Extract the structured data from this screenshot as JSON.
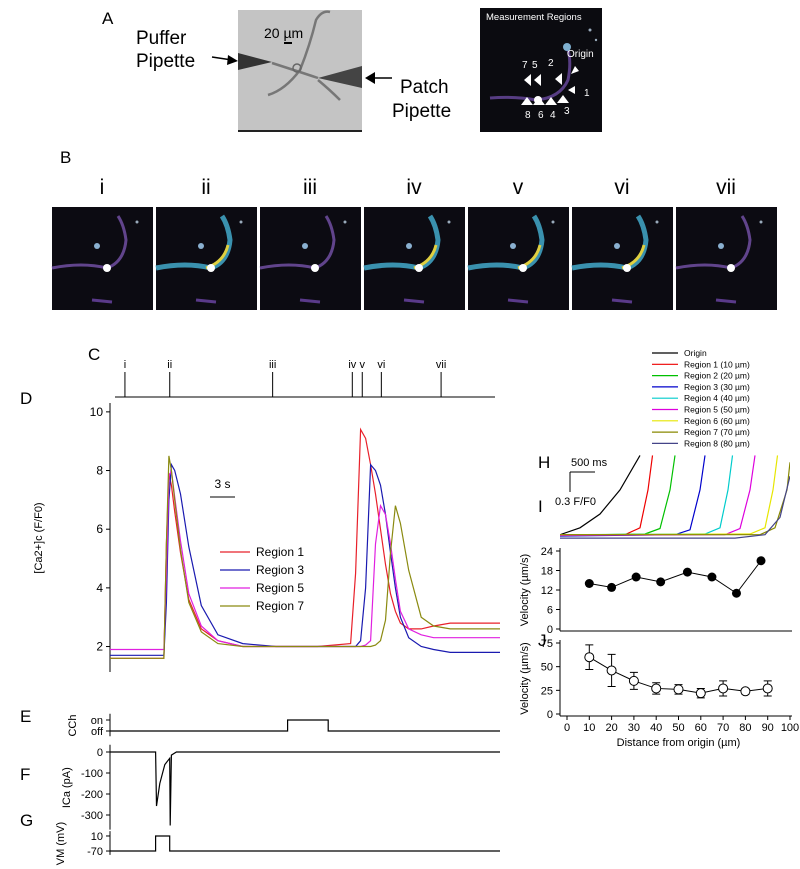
{
  "panel_a": {
    "label": "A",
    "puffer": [
      "Puffer",
      "Pipette"
    ],
    "patch": [
      "Patch",
      "Pipette"
    ],
    "scale": "20 µm",
    "inset_title": "Measurement Regions",
    "origin": "Origin",
    "region_numbers": [
      "7",
      "5",
      "2",
      "1",
      "8",
      "6",
      "4",
      "3"
    ]
  },
  "panel_b": {
    "label": "B",
    "frames": [
      "i",
      "ii",
      "iii",
      "iv",
      "v",
      "vi",
      "vii"
    ]
  },
  "chart_data": [
    {
      "type": "timeline",
      "panel": "C",
      "x": [
        1.8,
        7.2,
        19.6,
        29.2,
        30.4,
        32.7,
        39.9
      ],
      "labels": [
        "i",
        "ii",
        "iii",
        "iv",
        "v",
        "vi",
        "vii"
      ],
      "xlim": [
        0,
        47
      ]
    },
    {
      "type": "line",
      "panel": "D",
      "ylabel": "[Ca2+]c (F/F0)",
      "annotation": "3 s",
      "legend": "center-left",
      "x": [
        0,
        6.5,
        6.8,
        7.1,
        7.4,
        7.8,
        8.5,
        9.5,
        11,
        13,
        16,
        20,
        25,
        29,
        29.6,
        30.2,
        30.8,
        31.4,
        32,
        32.6,
        33.2,
        33.8,
        34.4,
        35,
        36,
        37.5,
        39,
        41,
        44,
        47
      ],
      "xlim": [
        0,
        47
      ],
      "ylim": [
        1.2,
        10.2
      ],
      "yticks": [
        2,
        4,
        6,
        8,
        10
      ],
      "series": [
        {
          "name": "Region 1",
          "color": "#e8202a",
          "values": [
            1.6,
            1.6,
            5.5,
            7.9,
            7.5,
            6.6,
            5.2,
            3.6,
            2.6,
            2.2,
            2.0,
            2.0,
            2.0,
            2.1,
            4.5,
            9.4,
            9.1,
            8.2,
            7.2,
            6.0,
            4.8,
            3.8,
            3.2,
            2.8,
            2.6,
            2.6,
            2.7,
            2.8,
            2.8,
            2.8
          ]
        },
        {
          "name": "Region 3",
          "color": "#1a1ab0",
          "values": [
            1.7,
            1.7,
            3.5,
            7.0,
            8.2,
            8.0,
            7.2,
            5.4,
            3.4,
            2.4,
            2.1,
            2.0,
            2.0,
            2.0,
            2.0,
            2.2,
            4.0,
            8.2,
            8.0,
            7.5,
            6.5,
            5.2,
            4.0,
            3.0,
            2.3,
            2.0,
            1.9,
            1.8,
            1.8,
            1.8
          ]
        },
        {
          "name": "Region 5",
          "color": "#e020e0",
          "values": [
            1.9,
            1.9,
            4.5,
            7.8,
            8.0,
            7.1,
            5.6,
            3.8,
            2.7,
            2.2,
            2.0,
            2.0,
            2.0,
            2.0,
            2.0,
            2.0,
            2.05,
            2.2,
            5.5,
            6.8,
            6.5,
            5.5,
            4.3,
            3.2,
            2.6,
            2.4,
            2.3,
            2.3,
            2.3,
            2.3
          ]
        },
        {
          "name": "Region 7",
          "color": "#8a8a10",
          "values": [
            1.6,
            1.6,
            5.5,
            8.5,
            8.0,
            7.0,
            5.3,
            3.5,
            2.5,
            2.1,
            2.0,
            2.0,
            2.0,
            2.0,
            2.0,
            2.0,
            2.0,
            2.0,
            2.05,
            2.2,
            2.9,
            5.2,
            6.8,
            6.2,
            4.6,
            3.0,
            2.7,
            2.6,
            2.6,
            2.6
          ]
        }
      ]
    },
    {
      "type": "line",
      "panel": "E",
      "ylabel": "CCh",
      "x": [
        0,
        21.4,
        21.4,
        26.3,
        26.3,
        47
      ],
      "xlim": [
        0,
        47
      ],
      "ylim": [
        -0.3,
        1.3
      ],
      "yticks": [
        {
          "value": 1,
          "label": "on"
        },
        {
          "value": 0,
          "label": "off"
        }
      ],
      "series": [
        {
          "color": "#000000",
          "values": [
            0,
            0,
            1,
            1,
            0,
            0
          ]
        }
      ]
    },
    {
      "type": "line",
      "panel": "F",
      "ylabel": "ICa (pA)",
      "x": [
        0,
        5.5,
        5.6,
        6,
        6.6,
        7.2,
        7.25,
        7.4,
        8,
        47
      ],
      "xlim": [
        0,
        47
      ],
      "ylim": [
        -360,
        20
      ],
      "yticks": [
        0,
        -100,
        -200,
        -300
      ],
      "series": [
        {
          "color": "#000000",
          "values": [
            0,
            0,
            -257,
            -150,
            -60,
            -30,
            -350,
            -15,
            0,
            0
          ]
        }
      ]
    },
    {
      "type": "line",
      "panel": "G",
      "ylabel": "VM (mV)",
      "x": [
        0,
        5.5,
        5.5,
        7.2,
        7.2,
        47
      ],
      "xlim": [
        0,
        47
      ],
      "ylim": [
        -80,
        20
      ],
      "yticks": [
        10,
        -70
      ],
      "series": [
        {
          "color": "#000000",
          "values": [
            -70,
            -70,
            10,
            10,
            -70,
            -70
          ]
        }
      ]
    },
    {
      "type": "line",
      "panel": "H",
      "annotations": [
        "500 ms",
        "0.3 F/F0"
      ],
      "legend": "top-right",
      "xlim": [
        0,
        4600
      ],
      "ylim": [
        -0.1,
        1.25
      ],
      "series": [
        {
          "name": "Origin",
          "color": "#000000",
          "x": [
            0,
            400,
            800,
            1200,
            1600
          ],
          "values": [
            0.05,
            0.15,
            0.35,
            0.7,
            1.2
          ]
        },
        {
          "name": "Region 1 (10 µm)",
          "color": "#ee0000",
          "x": [
            0,
            1300,
            1600,
            1760,
            1850
          ],
          "values": [
            0.05,
            0.05,
            0.15,
            0.7,
            1.2
          ]
        },
        {
          "name": "Region 2 (20 µm)",
          "color": "#00c000",
          "x": [
            0,
            1700,
            2000,
            2200,
            2300
          ],
          "values": [
            0.04,
            0.06,
            0.14,
            0.7,
            1.2
          ]
        },
        {
          "name": "Region 3 (30 µm)",
          "color": "#0000cc",
          "x": [
            0,
            2300,
            2600,
            2800,
            2900
          ],
          "values": [
            0.03,
            0.05,
            0.12,
            0.7,
            1.2
          ]
        },
        {
          "name": "Region 4 (40 µm)",
          "color": "#00cccc",
          "x": [
            0,
            2900,
            3200,
            3360,
            3450
          ],
          "values": [
            0.05,
            0.06,
            0.15,
            0.7,
            1.2
          ]
        },
        {
          "name": "Region 5 (50 µm)",
          "color": "#dd00dd",
          "x": [
            0,
            3300,
            3600,
            3800,
            3900
          ],
          "values": [
            0.04,
            0.05,
            0.14,
            0.7,
            1.2
          ]
        },
        {
          "name": "Region 6 (60 µm)",
          "color": "#e6e600",
          "x": [
            0,
            3800,
            4100,
            4260,
            4350
          ],
          "values": [
            0.05,
            0.06,
            0.15,
            0.7,
            1.2
          ]
        },
        {
          "name": "Region 7 (70 µm)",
          "color": "#888800",
          "x": [
            0,
            4000,
            4300,
            4540,
            4600
          ],
          "values": [
            0.05,
            0.05,
            0.15,
            0.7,
            1.1
          ]
        },
        {
          "name": "Region 8 (80 µm)",
          "color": "#444488",
          "x": [
            0,
            3500,
            4100,
            4400,
            4600
          ],
          "values": [
            0,
            0,
            0.05,
            0.3,
            0.9
          ]
        }
      ]
    },
    {
      "type": "scatter",
      "panel": "I",
      "ylabel": "Velocity (µm/s)",
      "x": [
        10,
        20,
        31,
        42,
        54,
        65,
        76,
        87
      ],
      "values": [
        14,
        12.8,
        16,
        14.5,
        17.5,
        16,
        11,
        21
      ],
      "xlim": [
        0,
        100
      ],
      "ylim": [
        0,
        24
      ],
      "yticks": [
        0,
        6,
        12,
        18,
        24
      ]
    },
    {
      "type": "errorbar",
      "panel": "J",
      "ylabel": "Velocity (µm/s)",
      "xlabel": "Distance from origin (µm)",
      "x": [
        10,
        20,
        30,
        40,
        50,
        60,
        70,
        80,
        90
      ],
      "values": [
        60,
        46,
        35,
        27,
        26,
        22,
        27,
        24,
        27
      ],
      "errors": [
        13,
        17,
        9,
        6,
        5,
        5,
        8,
        3,
        8
      ],
      "xlim": [
        0,
        100
      ],
      "xticks": [
        0,
        10,
        20,
        30,
        40,
        50,
        60,
        70,
        80,
        90,
        100
      ],
      "ylim": [
        0,
        75
      ],
      "yticks": [
        0,
        25,
        50,
        75
      ]
    }
  ]
}
